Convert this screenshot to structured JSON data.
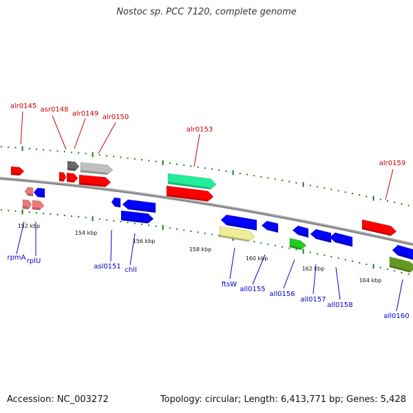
{
  "title": "Nostoc sp. PCC 7120, complete genome",
  "footer": {
    "accession": "Accession: NC_003272",
    "summary": "Topology: circular; Length: 6,413,771 bp; Genes: 5,428"
  },
  "colors": {
    "forward_label": "#cc0000",
    "reverse_label": "#0000cc",
    "backbone": "#888888",
    "tick": "#1a7a1a"
  },
  "scale_labels": [
    "152 kbp",
    "154 kbp",
    "156 kbp",
    "158 kbp",
    "160 kbp",
    "162 kbp",
    "164 kbp"
  ],
  "forward_genes": [
    {
      "name": "alr0145",
      "color": "#ff0000"
    },
    {
      "name": "asr0148",
      "color": "#ff0000"
    },
    {
      "name": "alr0149",
      "color": "#666666"
    },
    {
      "name": "alr0150",
      "color": "#c0c0c0"
    },
    {
      "name": "alr0153",
      "color": "#22ee99"
    },
    {
      "name": "alr0159",
      "color": "#ff0000"
    }
  ],
  "reverse_genes": [
    {
      "name": "rpmA",
      "color": "#ee7777"
    },
    {
      "name": "rplU",
      "color": "#ee7777"
    },
    {
      "name": "asl0151",
      "color": "#0000ff"
    },
    {
      "name": "chlI",
      "color": "#0000ff"
    },
    {
      "name": "ftsW",
      "color": "#eeee99"
    },
    {
      "name": "all0155",
      "color": "#0000ff"
    },
    {
      "name": "all0156",
      "color": "#0000ff"
    },
    {
      "name": "all0157",
      "color": "#22cc22"
    },
    {
      "name": "all0158",
      "color": "#0000ff"
    },
    {
      "name": "all0160",
      "color": "#669922"
    }
  ]
}
